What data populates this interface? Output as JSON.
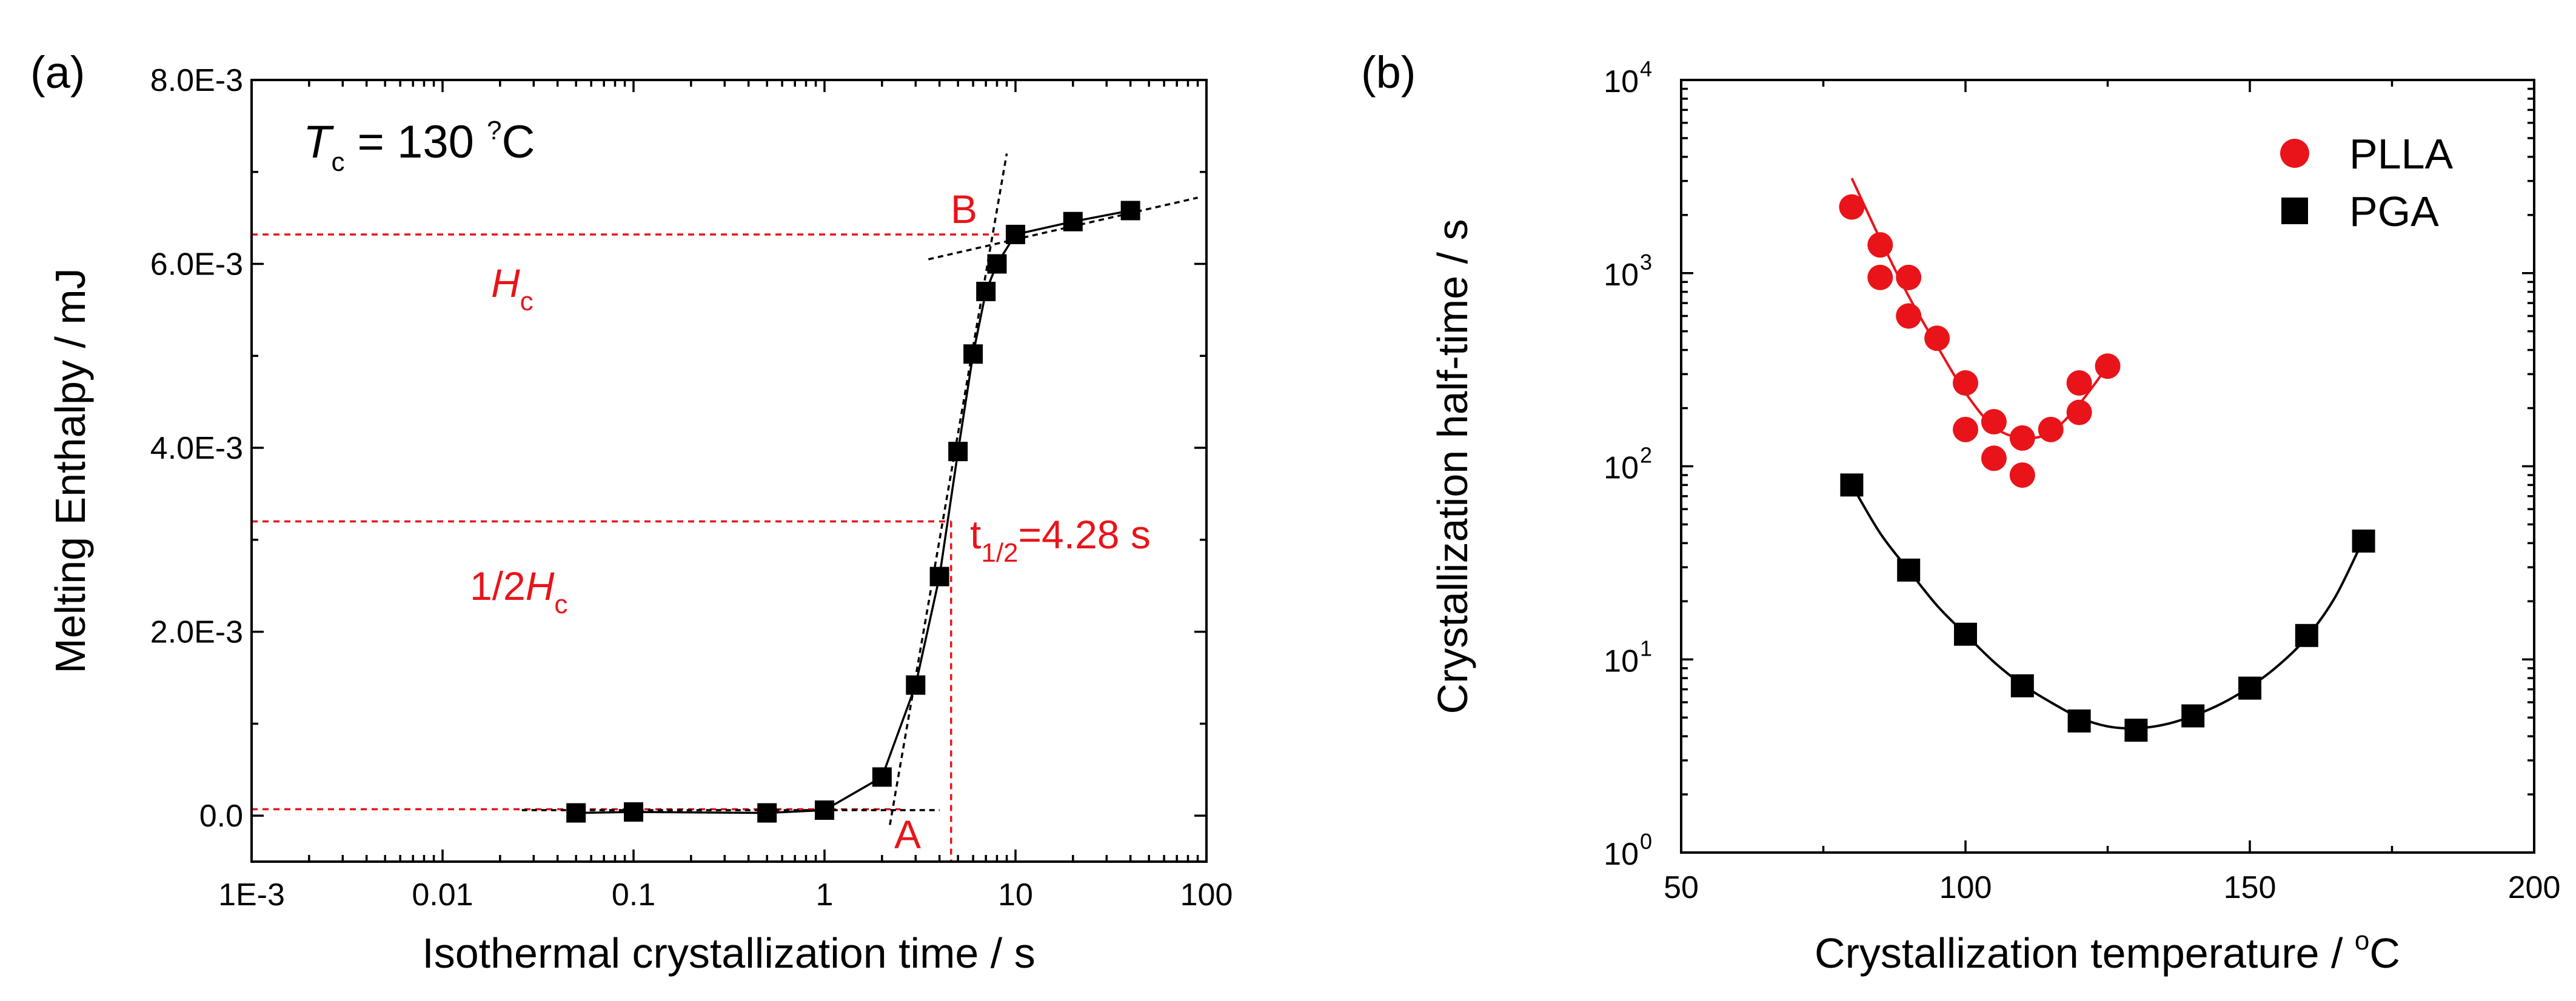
{
  "chart_data": [
    {
      "type": "scatter",
      "panel_label": "(a)",
      "xscale": "log",
      "xlabel": "Isothermal crystallization time / s",
      "ylabel": "Melting Enthalpy / mJ",
      "xlim": [
        0.001,
        100
      ],
      "ylim": [
        -0.0005,
        0.008
      ],
      "xticks": [
        0.001,
        0.01,
        0.1,
        1,
        10,
        100
      ],
      "xtick_labels": [
        "1E-3",
        "0.01",
        "0.1",
        "1",
        "10",
        "100"
      ],
      "yticks": [
        0,
        0.002,
        0.004,
        0.006,
        0.008
      ],
      "ytick_labels": [
        "0.0",
        "2.0E-3",
        "4.0E-3",
        "6.0E-3",
        "8.0E-3"
      ],
      "tc": {
        "symbol": "T",
        "sub": "c",
        "text": " = 130 ",
        "deg": "?",
        "unit": "C"
      },
      "series": [
        {
          "name": "data",
          "marker": "square",
          "color": "#000000",
          "x": [
            0.05,
            0.1,
            0.5,
            1,
            2,
            3,
            4,
            5,
            6,
            7,
            8,
            10,
            20,
            40
          ],
          "y": [
            3e-05,
            4e-05,
            3e-05,
            6e-05,
            0.00042,
            0.00142,
            0.0026,
            0.00396,
            0.00502,
            0.0057,
            0.006,
            0.00632,
            0.00646,
            0.00658
          ]
        }
      ],
      "tangents": [
        {
          "x": [
            0.026,
            4
          ],
          "y": [
            6e-05,
            6e-05
          ]
        },
        {
          "x": [
            2.2,
            9
          ],
          "y": [
            -0.0001,
            0.0072
          ]
        },
        {
          "x": [
            3.5,
            90
          ],
          "y": [
            0.00605,
            0.00672
          ]
        }
      ],
      "reference_lines": {
        "hc_y": 0.00632,
        "half_hc_y": 0.0032,
        "baseline_y": 7e-05,
        "t_half_x": 4.6,
        "a_x": 2.5,
        "b_x": 8.2
      },
      "annotations": {
        "point_a": "A",
        "point_b": "B",
        "hc_symbol": "H",
        "hc_sub": "c",
        "half_prefix": "1/2",
        "half_symbol": "H",
        "half_sub": "c",
        "thalf_symbol": "t",
        "thalf_sub": "1/2",
        "thalf_value": "=4.28 s"
      },
      "colors": {
        "data": "#000000",
        "annotation": "#e8141a"
      }
    },
    {
      "type": "scatter",
      "panel_label": "(b)",
      "yscale": "log",
      "xlabel": "Crystallization temperature / ",
      "xlabel_deg": "o",
      "xlabel_unit": "C",
      "ylabel": "Crystallization half-time / s",
      "xlim": [
        50,
        200
      ],
      "ylim": [
        1,
        10000
      ],
      "xticks": [
        50,
        100,
        150,
        200
      ],
      "xtick_labels": [
        "50",
        "100",
        "150",
        "200"
      ],
      "yticks": [
        1,
        10,
        100,
        1000,
        10000
      ],
      "ytick_labels": [
        {
          "base": "10",
          "exp": "0"
        },
        {
          "base": "10",
          "exp": "1"
        },
        {
          "base": "10",
          "exp": "2"
        },
        {
          "base": "10",
          "exp": "3"
        },
        {
          "base": "10",
          "exp": "4"
        }
      ],
      "series": [
        {
          "name": "PLLA",
          "marker": "circle",
          "color": "#e8141a",
          "x": [
            80,
            85,
            85,
            90,
            90,
            95,
            100,
            100,
            105,
            105,
            110,
            110,
            115,
            120,
            120,
            125
          ],
          "y": [
            2200,
            1400,
            950,
            950,
            600,
            460,
            270,
            155,
            170,
            110,
            140,
            90,
            155,
            270,
            190,
            330
          ],
          "fit": {
            "x": [
              80,
              85,
              90,
              95,
              100,
              105,
              110,
              115,
              120,
              125
            ],
            "y": [
              3100,
              1500,
              760,
              420,
              240,
              160,
              140,
              150,
              210,
              330
            ]
          }
        },
        {
          "name": "PGA",
          "marker": "square",
          "color": "#000000",
          "x": [
            80,
            90,
            100,
            110,
            120,
            130,
            140,
            150,
            160,
            170
          ],
          "y": [
            80,
            29,
            13.5,
            7.3,
            4.8,
            4.3,
            5.1,
            7.1,
            13.3,
            41
          ],
          "fit": {
            "x": [
              80,
              85,
              90,
              95,
              100,
              105,
              110,
              115,
              120,
              125,
              130,
              135,
              140,
              145,
              150,
              155,
              160,
              165,
              170
            ],
            "y": [
              80,
              45,
              29,
              19,
              13.5,
              9.7,
              7.4,
              6.0,
              5.0,
              4.5,
              4.4,
              4.6,
              5.1,
              5.9,
              7.2,
              9.3,
              13.0,
              21,
              42
            ]
          }
        }
      ],
      "legend": [
        {
          "label": "PLLA",
          "marker": "circle",
          "color": "#e8141a"
        },
        {
          "label": "PGA",
          "marker": "square",
          "color": "#000000"
        }
      ],
      "legend_position": "top-right"
    }
  ]
}
